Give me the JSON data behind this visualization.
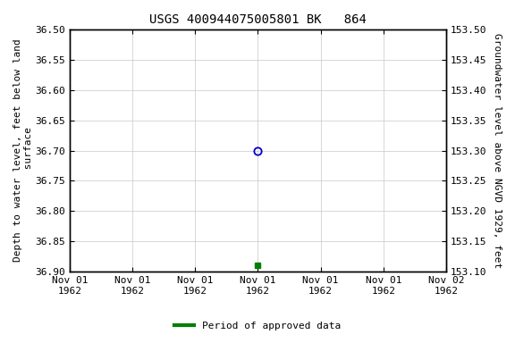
{
  "title": "USGS 400944075005801 BK   864",
  "ylabel_left": "Depth to water level, feet below land\n surface",
  "ylabel_right": "Groundwater level above NGVD 1929, feet",
  "ylim_left_top": 36.5,
  "ylim_left_bottom": 36.9,
  "ylim_right_top": 153.5,
  "ylim_right_bottom": 153.1,
  "yticks_left": [
    36.5,
    36.55,
    36.6,
    36.65,
    36.7,
    36.75,
    36.8,
    36.85,
    36.9
  ],
  "yticks_right": [
    153.5,
    153.45,
    153.4,
    153.35,
    153.3,
    153.25,
    153.2,
    153.15,
    153.1
  ],
  "data_open_circle": {
    "x": 12,
    "value": 36.7
  },
  "data_green_square": {
    "x": 12,
    "value": 36.89
  },
  "legend_label": "Period of approved data",
  "legend_color": "#008000",
  "background_color": "#ffffff",
  "grid_color": "#c8c8c8",
  "font_family": "monospace",
  "title_fontsize": 10,
  "axis_label_fontsize": 8,
  "tick_fontsize": 8,
  "open_circle_color": "#0000cc",
  "green_square_color": "#008000",
  "xlim": [
    0,
    24
  ],
  "xtick_positions": [
    0,
    4,
    8,
    12,
    16,
    20,
    24
  ],
  "xtick_labels": [
    "Nov 01\n1962",
    "Nov 01\n1962",
    "Nov 01\n1962",
    "Nov 01\n1962",
    "Nov 01\n1962",
    "Nov 01\n1962",
    "Nov 02\n1962"
  ]
}
